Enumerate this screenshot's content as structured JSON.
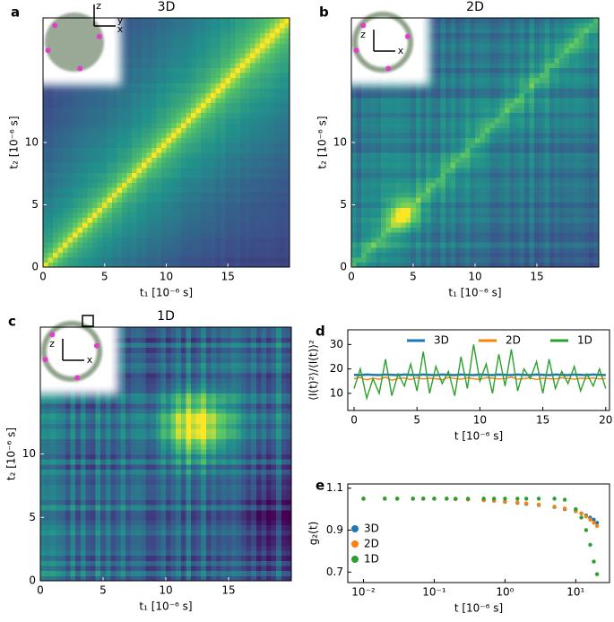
{
  "chart_data": [
    {
      "type": "heatmap",
      "panel": "a",
      "title": "3D",
      "pattern": "3D",
      "xlabel": "t₁ [10⁻⁶ s]",
      "ylabel": "t₂ [10⁻⁶ s]",
      "xlim": [
        0,
        20
      ],
      "ylim": [
        0,
        20
      ],
      "xticks": [
        0,
        5,
        10,
        15
      ],
      "yticks": [
        0,
        5,
        10
      ],
      "inset_axes": [
        "z",
        "y",
        "x"
      ]
    },
    {
      "type": "heatmap",
      "panel": "b",
      "title": "2D",
      "pattern": "2D",
      "xlabel": "t₁ [10⁻⁶ s]",
      "ylabel": "t₂ [10⁻⁶ s]",
      "xlim": [
        0,
        20
      ],
      "ylim": [
        0,
        20
      ],
      "xticks": [
        0,
        5,
        10,
        15
      ],
      "yticks": [
        0,
        5,
        10
      ],
      "inset_axes": [
        "z",
        "x"
      ]
    },
    {
      "type": "heatmap",
      "panel": "c",
      "title": "1D",
      "pattern": "1D",
      "xlabel": "t₁ [10⁻⁶ s]",
      "ylabel": "t₂ [10⁻⁶ s]",
      "xlim": [
        0,
        20
      ],
      "ylim": [
        0,
        20
      ],
      "xticks": [
        0,
        5,
        10,
        15
      ],
      "yticks": [
        0,
        5,
        10
      ],
      "inset_axes": [
        "z",
        "x"
      ]
    },
    {
      "type": "line",
      "panel": "d",
      "xlabel": "t [10⁻⁶ s]",
      "ylabel": "⟨I(t)²⟩/⟨I(t)⟩²",
      "xlim": [
        -0.5,
        20.3
      ],
      "ylim": [
        3,
        36
      ],
      "xticks": [
        0,
        5,
        10,
        15,
        20
      ],
      "yticks": [
        10,
        20,
        30
      ],
      "legend": "upper center",
      "x": [
        0,
        0.5,
        1,
        1.5,
        2,
        2.5,
        3,
        3.5,
        4,
        4.5,
        5,
        5.5,
        6,
        6.5,
        7,
        7.5,
        8,
        8.5,
        9,
        9.5,
        10,
        10.5,
        11,
        11.5,
        12,
        12.5,
        13,
        13.5,
        14,
        14.5,
        15,
        15.5,
        16,
        16.5,
        17,
        17.5,
        18,
        18.5,
        19,
        19.5,
        20
      ],
      "series": [
        {
          "name": "3D",
          "color": "#1f77b4",
          "values": [
            17.6,
            17.5,
            17.7,
            17.6,
            17.5,
            17.7,
            17.6,
            17.5,
            17.7,
            17.6,
            17.5,
            17.7,
            17.6,
            17.5,
            17.7,
            17.6,
            17.5,
            17.7,
            17.6,
            17.5,
            17.7,
            17.6,
            17.5,
            17.7,
            17.6,
            17.5,
            17.7,
            17.6,
            17.5,
            17.7,
            17.6,
            17.5,
            17.7,
            17.6,
            17.5,
            17.7,
            17.6,
            17.5,
            17.7,
            17.6,
            17.5
          ]
        },
        {
          "name": "2D",
          "color": "#ff7f0e",
          "values": [
            16,
            16.5,
            15.5,
            16.2,
            15.8,
            16.6,
            15.4,
            16.1,
            16.3,
            15.7,
            16.4,
            15.9,
            16.2,
            16.0,
            15.6,
            16.5,
            16.1,
            15.8,
            16.3,
            16.0,
            15.7,
            16.4,
            16.2,
            15.9,
            16.1,
            16.6,
            15.8,
            16.0,
            16.3,
            15.7,
            16.2,
            16.0,
            15.9,
            16.4,
            16.1,
            15.8,
            16.2,
            16.0,
            16.3,
            15.9,
            16.1
          ]
        },
        {
          "name": "1D",
          "color": "#2ca02c",
          "values": [
            12,
            20,
            8,
            16,
            10,
            24,
            9,
            18,
            13,
            22,
            11,
            27,
            10,
            21,
            14,
            19,
            9,
            25,
            12,
            30,
            15,
            22,
            10,
            26,
            13,
            28,
            11,
            20,
            16,
            23,
            10,
            24,
            12,
            19,
            14,
            21,
            11,
            18,
            13,
            20,
            12
          ]
        }
      ]
    },
    {
      "type": "scatter",
      "panel": "e",
      "xlabel": "t [10⁻⁶ s]",
      "ylabel": "g₂(t)",
      "xscale": "log",
      "xlim": [
        0.006,
        30
      ],
      "ylim": [
        0.65,
        1.12
      ],
      "xticks": [
        {
          "value": 0.01,
          "label": "10⁻²"
        },
        {
          "value": 0.1,
          "label": "10⁻¹"
        },
        {
          "value": 1,
          "label": "10⁰"
        },
        {
          "value": 10,
          "label": "10¹"
        }
      ],
      "yticks": [
        0.7,
        0.9,
        1.1
      ],
      "legend": "center left",
      "x": [
        0.01,
        0.02,
        0.03,
        0.05,
        0.07,
        0.1,
        0.15,
        0.2,
        0.3,
        0.5,
        0.7,
        1,
        1.5,
        2,
        3,
        5,
        7,
        10,
        12,
        14,
        16,
        18,
        20
      ],
      "series": [
        {
          "name": "3D",
          "color": "#1f77b4",
          "values": [
            1.05,
            1.05,
            1.05,
            1.05,
            1.05,
            1.05,
            1.05,
            1.048,
            1.046,
            1.043,
            1.04,
            1.035,
            1.03,
            1.025,
            1.02,
            1.01,
            1.0,
            0.99,
            0.98,
            0.97,
            0.96,
            0.95,
            0.935
          ]
        },
        {
          "name": "2D",
          "color": "#ff7f0e",
          "values": [
            1.05,
            1.05,
            1.05,
            1.05,
            1.05,
            1.05,
            1.05,
            1.048,
            1.046,
            1.043,
            1.04,
            1.036,
            1.032,
            1.028,
            1.022,
            1.012,
            1.003,
            0.99,
            0.98,
            0.965,
            0.95,
            0.935,
            0.92
          ]
        },
        {
          "name": "1D",
          "color": "#2ca02c",
          "values": [
            1.05,
            1.05,
            1.05,
            1.05,
            1.05,
            1.05,
            1.05,
            1.05,
            1.05,
            1.05,
            1.05,
            1.05,
            1.05,
            1.05,
            1.05,
            1.05,
            1.045,
            1.0,
            0.96,
            0.9,
            0.83,
            0.75,
            0.69
          ]
        }
      ]
    }
  ]
}
